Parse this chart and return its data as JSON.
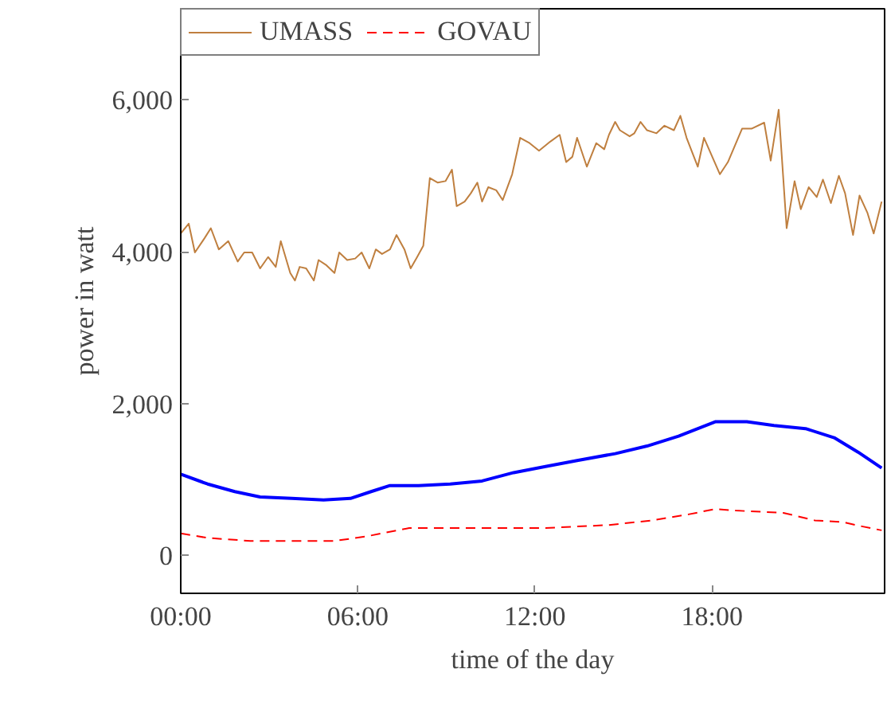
{
  "chart_data": {
    "type": "line",
    "xlabel": "time of the day",
    "ylabel": "power in watt",
    "xlim": [
      0,
      23.85
    ],
    "ylim": [
      -500,
      7200
    ],
    "xticks": [
      {
        "value": 0,
        "label": "00:00"
      },
      {
        "value": 6,
        "label": "06:00"
      },
      {
        "value": 12,
        "label": "12:00"
      },
      {
        "value": 18,
        "label": "18:00"
      }
    ],
    "yticks": [
      {
        "value": 0,
        "label": "0"
      },
      {
        "value": 2000,
        "label": "2,000"
      },
      {
        "value": 4000,
        "label": "4,000"
      },
      {
        "value": 6000,
        "label": "6,000"
      }
    ],
    "grid": false,
    "legend": "top left",
    "marker": "none",
    "series": [
      {
        "name": "UMASS",
        "color": "#bf7f3f",
        "line_style": "solid",
        "x": [
          0,
          0.27,
          0.48,
          0.81,
          1.02,
          1.29,
          1.61,
          1.93,
          2.15,
          2.42,
          2.69,
          2.96,
          3.22,
          3.39,
          3.71,
          3.87,
          4.03,
          4.25,
          4.51,
          4.67,
          4.94,
          5.21,
          5.37,
          5.64,
          5.91,
          6.13,
          6.39,
          6.61,
          6.82,
          7.09,
          7.31,
          7.58,
          7.79,
          8.01,
          8.22,
          8.44,
          8.71,
          8.97,
          9.19,
          9.35,
          9.62,
          9.83,
          10.05,
          10.21,
          10.42,
          10.69,
          10.91,
          11.23,
          11.5,
          11.82,
          12.14,
          12.52,
          12.84,
          13.06,
          13.27,
          13.43,
          13.76,
          14.08,
          14.35,
          14.51,
          14.72,
          14.88,
          15.21,
          15.37,
          15.58,
          15.8,
          16.12,
          16.39,
          16.71,
          16.93,
          17.14,
          17.52,
          17.73,
          18.27,
          18.54,
          19.02,
          19.34,
          19.77,
          19.99,
          20.26,
          20.53,
          20.8,
          21.01,
          21.28,
          21.55,
          21.76,
          22.03,
          22.3,
          22.51,
          22.78,
          23.0,
          23.27,
          23.48,
          23.75
        ],
        "values": [
          4240,
          4370,
          3990,
          4180,
          4310,
          4030,
          4140,
          3870,
          3990,
          3990,
          3780,
          3930,
          3800,
          4140,
          3720,
          3620,
          3800,
          3780,
          3620,
          3890,
          3820,
          3720,
          3990,
          3890,
          3910,
          3990,
          3780,
          4030,
          3970,
          4030,
          4220,
          4030,
          3780,
          3930,
          4080,
          4970,
          4910,
          4930,
          5080,
          4600,
          4660,
          4770,
          4910,
          4660,
          4850,
          4810,
          4680,
          5020,
          5500,
          5430,
          5330,
          5450,
          5540,
          5180,
          5250,
          5500,
          5120,
          5430,
          5350,
          5540,
          5710,
          5600,
          5520,
          5560,
          5710,
          5600,
          5560,
          5660,
          5600,
          5790,
          5500,
          5120,
          5500,
          5020,
          5180,
          5620,
          5620,
          5700,
          5200,
          5870,
          4310,
          4930,
          4560,
          4850,
          4720,
          4950,
          4640,
          5000,
          4770,
          4220,
          4740,
          4510,
          4240,
          4660
        ]
      },
      {
        "color": "#0000ff",
        "line_style": "solid",
        "x": [
          0,
          0.91,
          1.83,
          2.69,
          3.76,
          4.84,
          5.75,
          6.45,
          7.09,
          8.06,
          9.13,
          10.21,
          11.28,
          12.36,
          13.43,
          14.72,
          15.8,
          16.87,
          18.11,
          19.18,
          20.1,
          21.17,
          22.14,
          22.95,
          23.75
        ],
        "values": [
          1070,
          940,
          840,
          770,
          750,
          730,
          750,
          840,
          920,
          920,
          940,
          980,
          1090,
          1170,
          1250,
          1340,
          1440,
          1570,
          1760,
          1760,
          1710,
          1670,
          1550,
          1360,
          1150
        ]
      },
      {
        "name": "GOVAU",
        "color": "#ff0000",
        "line_style": "dashed",
        "x": [
          0,
          0.91,
          2.36,
          3.76,
          5.21,
          6.29,
          7.74,
          9.89,
          12.36,
          14.51,
          15.96,
          17.2,
          18.11,
          18.81,
          20.42,
          21.49,
          22.41,
          23.11,
          23.75
        ],
        "values": [
          290,
          230,
          190,
          190,
          190,
          250,
          360,
          360,
          360,
          400,
          460,
          540,
          610,
          590,
          560,
          460,
          440,
          380,
          330
        ]
      }
    ]
  }
}
